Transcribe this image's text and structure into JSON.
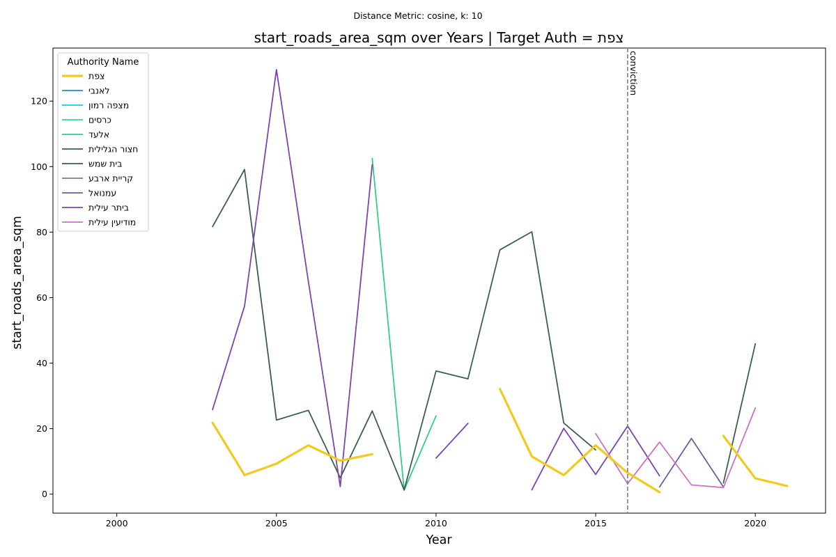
{
  "chart_data": {
    "type": "line",
    "suptitle": "Distance Metric: cosine, k: 10",
    "title": "start_roads_area_sqm over Years | Target Auth = צפת",
    "xlabel": "Year",
    "ylabel": "start_roads_area_sqm",
    "xlim": [
      1998,
      2022.2
    ],
    "ylim": [
      -5.8,
      136.2
    ],
    "xticks": [
      2000,
      2005,
      2010,
      2015,
      2020
    ],
    "yticks": [
      0,
      20,
      40,
      60,
      80,
      100,
      120
    ],
    "grid": false,
    "legend_title": "Authority Name",
    "legend_position": "top-left",
    "annotation": {
      "label": "conviction",
      "x": 2016
    },
    "series": [
      {
        "name": "צפת",
        "color": "#f2ca1e",
        "target": true,
        "points": [
          [
            2003,
            21.8
          ],
          [
            2004,
            5.8
          ],
          [
            2005,
            9.3
          ],
          [
            2006,
            14.9
          ],
          [
            2007,
            10.2
          ],
          [
            2008,
            12.2
          ],
          [
            2012,
            32.1
          ],
          [
            2013,
            11.5
          ],
          [
            2014,
            5.8
          ],
          [
            2015,
            14.9
          ],
          [
            2016,
            6.5
          ],
          [
            2017,
            0.6
          ],
          [
            2019,
            17.8
          ],
          [
            2020,
            4.8
          ],
          [
            2021,
            2.5
          ]
        ]
      },
      {
        "name": "לאנבי",
        "color": "#1f8dc8",
        "points": []
      },
      {
        "name": "מצפה רמון",
        "color": "#19c6f0",
        "points": []
      },
      {
        "name": "כרסים",
        "color": "#2ad6a2",
        "points": []
      },
      {
        "name": "אלעד",
        "color": "#2fcf8a",
        "points": [
          [
            2008,
            102.6
          ],
          [
            2009,
            1.2
          ],
          [
            2010,
            23.9
          ]
        ]
      },
      {
        "name": "חצור הגלילית",
        "color": "#3b5e4f",
        "points": []
      },
      {
        "name": "בית שמש",
        "color": "#3b5e4f",
        "points": [
          [
            2003,
            81.7
          ],
          [
            2004,
            99.1
          ],
          [
            2005,
            22.6
          ],
          [
            2006,
            25.6
          ],
          [
            2007,
            5.0
          ],
          [
            2008,
            25.4
          ],
          [
            2009,
            1.3
          ],
          [
            2010,
            37.6
          ],
          [
            2011,
            35.2
          ],
          [
            2012,
            74.6
          ],
          [
            2013,
            80.1
          ],
          [
            2014,
            21.7
          ],
          [
            2015,
            13.5
          ],
          [
            2019,
            3.4
          ],
          [
            2020,
            45.9
          ]
        ]
      },
      {
        "name": "קריית ארבע",
        "color": "#7a7a7a",
        "points": []
      },
      {
        "name": "עמנואל",
        "color": "#6a5fa0",
        "points": [
          [
            2017,
            2.2
          ],
          [
            2018,
            17.0
          ],
          [
            2019,
            2.2
          ]
        ]
      },
      {
        "name": "ביתר עילית",
        "color": "#7b44b1",
        "points": [
          [
            2003,
            25.8
          ],
          [
            2004,
            57.4
          ],
          [
            2005,
            129.6
          ],
          [
            2006,
            65.0
          ],
          [
            2007,
            2.3
          ],
          [
            2008,
            100.6
          ],
          [
            2010,
            11.0
          ],
          [
            2011,
            21.6
          ],
          [
            2013,
            1.3
          ],
          [
            2014,
            20.1
          ],
          [
            2015,
            6.0
          ],
          [
            2016,
            20.8
          ],
          [
            2017,
            5.6
          ]
        ]
      },
      {
        "name": "מודיעין עילית",
        "color": "#cc6fcc",
        "points": [
          [
            2015,
            18.5
          ],
          [
            2016,
            3.2
          ],
          [
            2017,
            15.9
          ],
          [
            2018,
            2.8
          ],
          [
            2019,
            2.0
          ],
          [
            2020,
            26.3
          ]
        ]
      }
    ]
  }
}
